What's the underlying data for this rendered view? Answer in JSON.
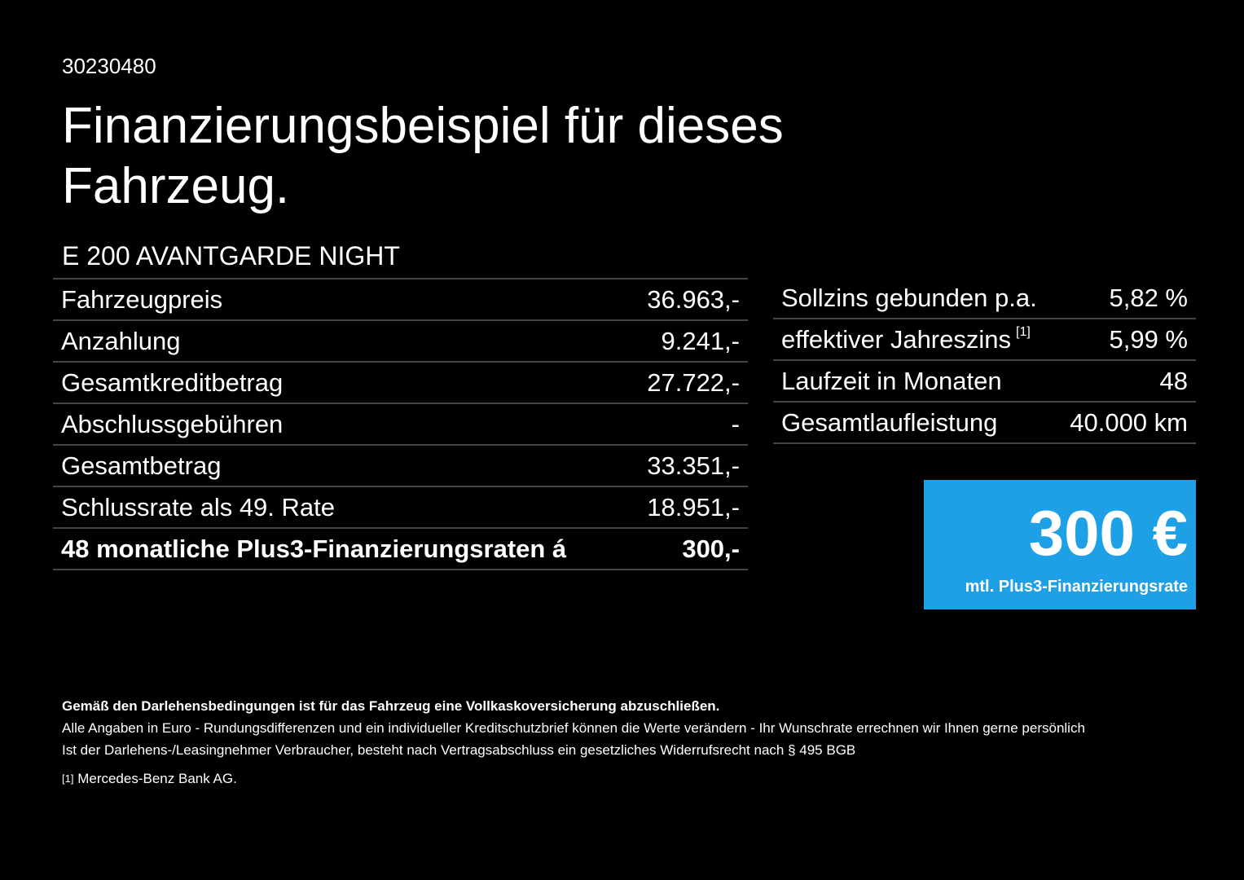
{
  "header": {
    "id": "30230480",
    "title_line1": "Finanzierungsbeispiel für dieses",
    "title_line2": "Fahrzeug.",
    "model": "E 200 AVANTGARDE NIGHT"
  },
  "left_table": {
    "rows": [
      [
        "Fahrzeugpreis",
        "36.963,-"
      ],
      [
        "Anzahlung",
        "9.241,-"
      ],
      [
        "Gesamtkreditbetrag",
        "27.722,-"
      ],
      [
        "Abschlussgebühren",
        "-"
      ],
      [
        "Gesamtbetrag",
        "33.351,-"
      ],
      [
        "Schlussrate als 49. Rate",
        "18.951,-"
      ],
      [
        "48 monatliche Plus3-Finanzierungsraten á",
        "300,-"
      ]
    ]
  },
  "right_table": {
    "rows": [
      [
        "Sollzins gebunden p.a.",
        "5,82 %"
      ],
      [
        "effektiver Jahreszins",
        "5,99 %"
      ],
      [
        "Laufzeit in Monaten",
        "48"
      ],
      [
        "Gesamtlaufleistung",
        "40.000 km"
      ]
    ],
    "footnote_ref": "[1]"
  },
  "badge": {
    "amount": "300 €",
    "caption": "mtl. Plus3-Finanzierungsrate"
  },
  "footer": {
    "bold": "Gemäß den Darlehensbedingungen ist für das Fahrzeug eine Vollkaskoversicherung abzuschließen.",
    "line1": "Alle Angaben in Euro - Rundungsdifferenzen und ein individueller Kreditschutzbrief können die Werte verändern - Ihr Wunschrate errechnen wir Ihnen gerne persönlich",
    "line2": "Ist der Darlehens-/Leasingnehmer Verbraucher, besteht nach Vertragsabschluss ein gesetzliches Widerrufsrecht nach § 495 BGB",
    "note_mark": "[1]",
    "note_text": "Mercedes-Benz Bank AG."
  }
}
